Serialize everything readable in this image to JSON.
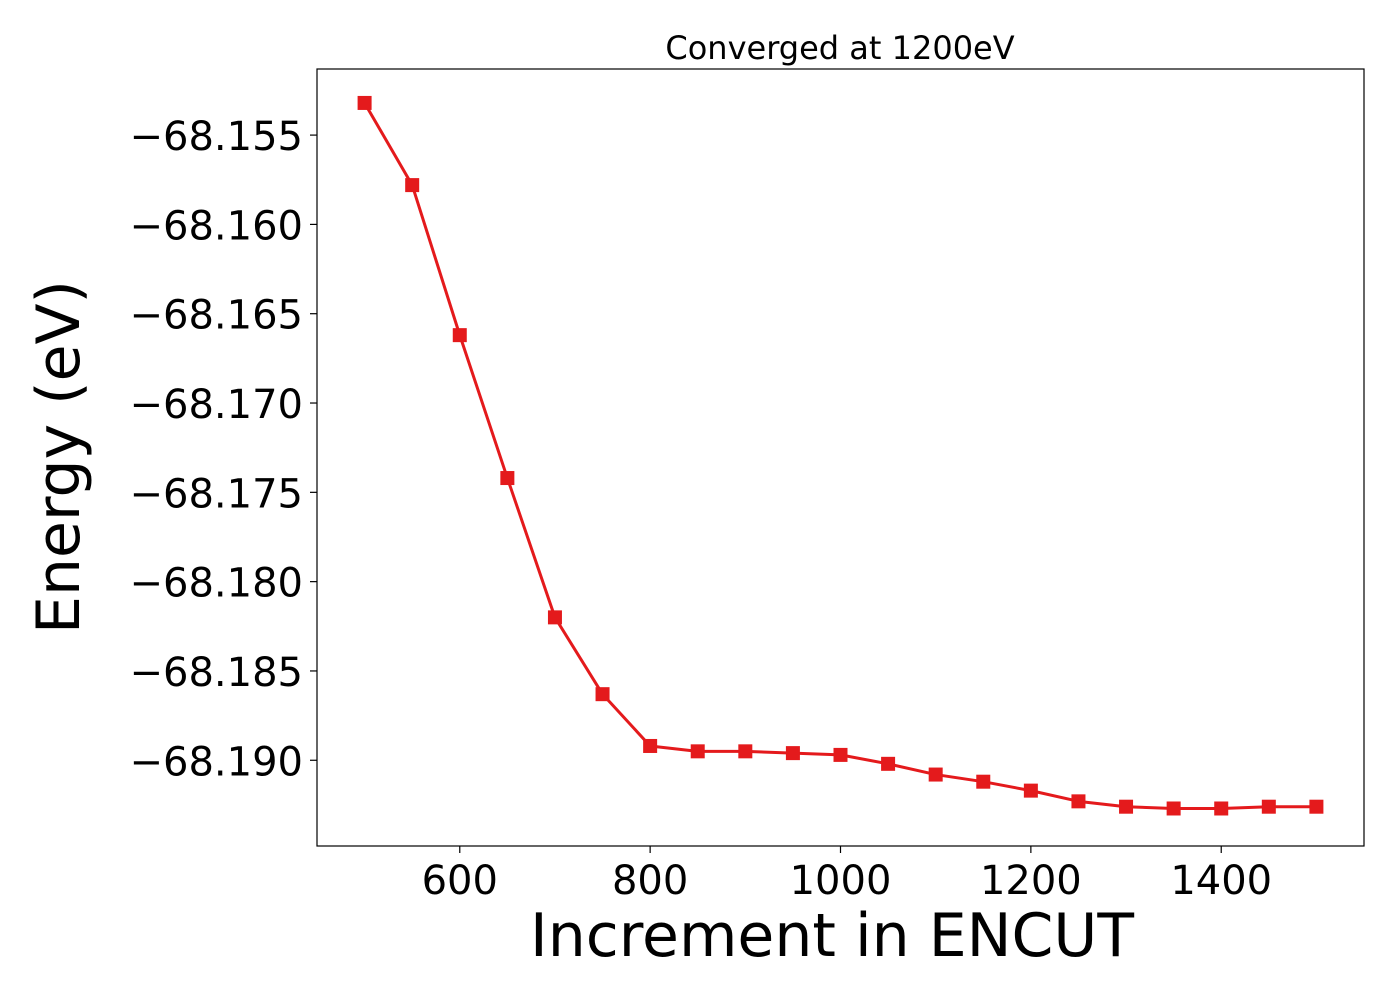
{
  "chart_data": {
    "type": "line",
    "title": "Converged at 1200eV",
    "xlabel": "Increment in ENCUT",
    "ylabel": "Energy (eV)",
    "xlim": [
      450,
      1550
    ],
    "ylim": [
      -68.1948,
      -68.1513
    ],
    "x_ticks": [
      600,
      800,
      1000,
      1200,
      1400
    ],
    "x_tick_labels": [
      "600",
      "800",
      "1000",
      "1200",
      "1400"
    ],
    "y_ticks": [
      -68.155,
      -68.16,
      -68.165,
      -68.17,
      -68.175,
      -68.18,
      -68.185,
      -68.19
    ],
    "y_tick_labels": [
      "−68.155",
      "−68.160",
      "−68.165",
      "−68.170",
      "−68.175",
      "−68.180",
      "−68.185",
      "−68.190"
    ],
    "grid": false,
    "series": [
      {
        "color": "#e41a1c",
        "marker": "square",
        "x": [
          500,
          550,
          600,
          650,
          700,
          750,
          800,
          850,
          900,
          950,
          1000,
          1050,
          1100,
          1150,
          1200,
          1250,
          1300,
          1350,
          1400,
          1450,
          1500
        ],
        "y": [
          -68.1532,
          -68.1578,
          -68.1662,
          -68.1742,
          -68.182,
          -68.1863,
          -68.1892,
          -68.1895,
          -68.1895,
          -68.1896,
          -68.1897,
          -68.1902,
          -68.1908,
          -68.1912,
          -68.1917,
          -68.1923,
          -68.1926,
          -68.1927,
          -68.1927,
          -68.1926,
          -68.1926
        ]
      }
    ]
  }
}
